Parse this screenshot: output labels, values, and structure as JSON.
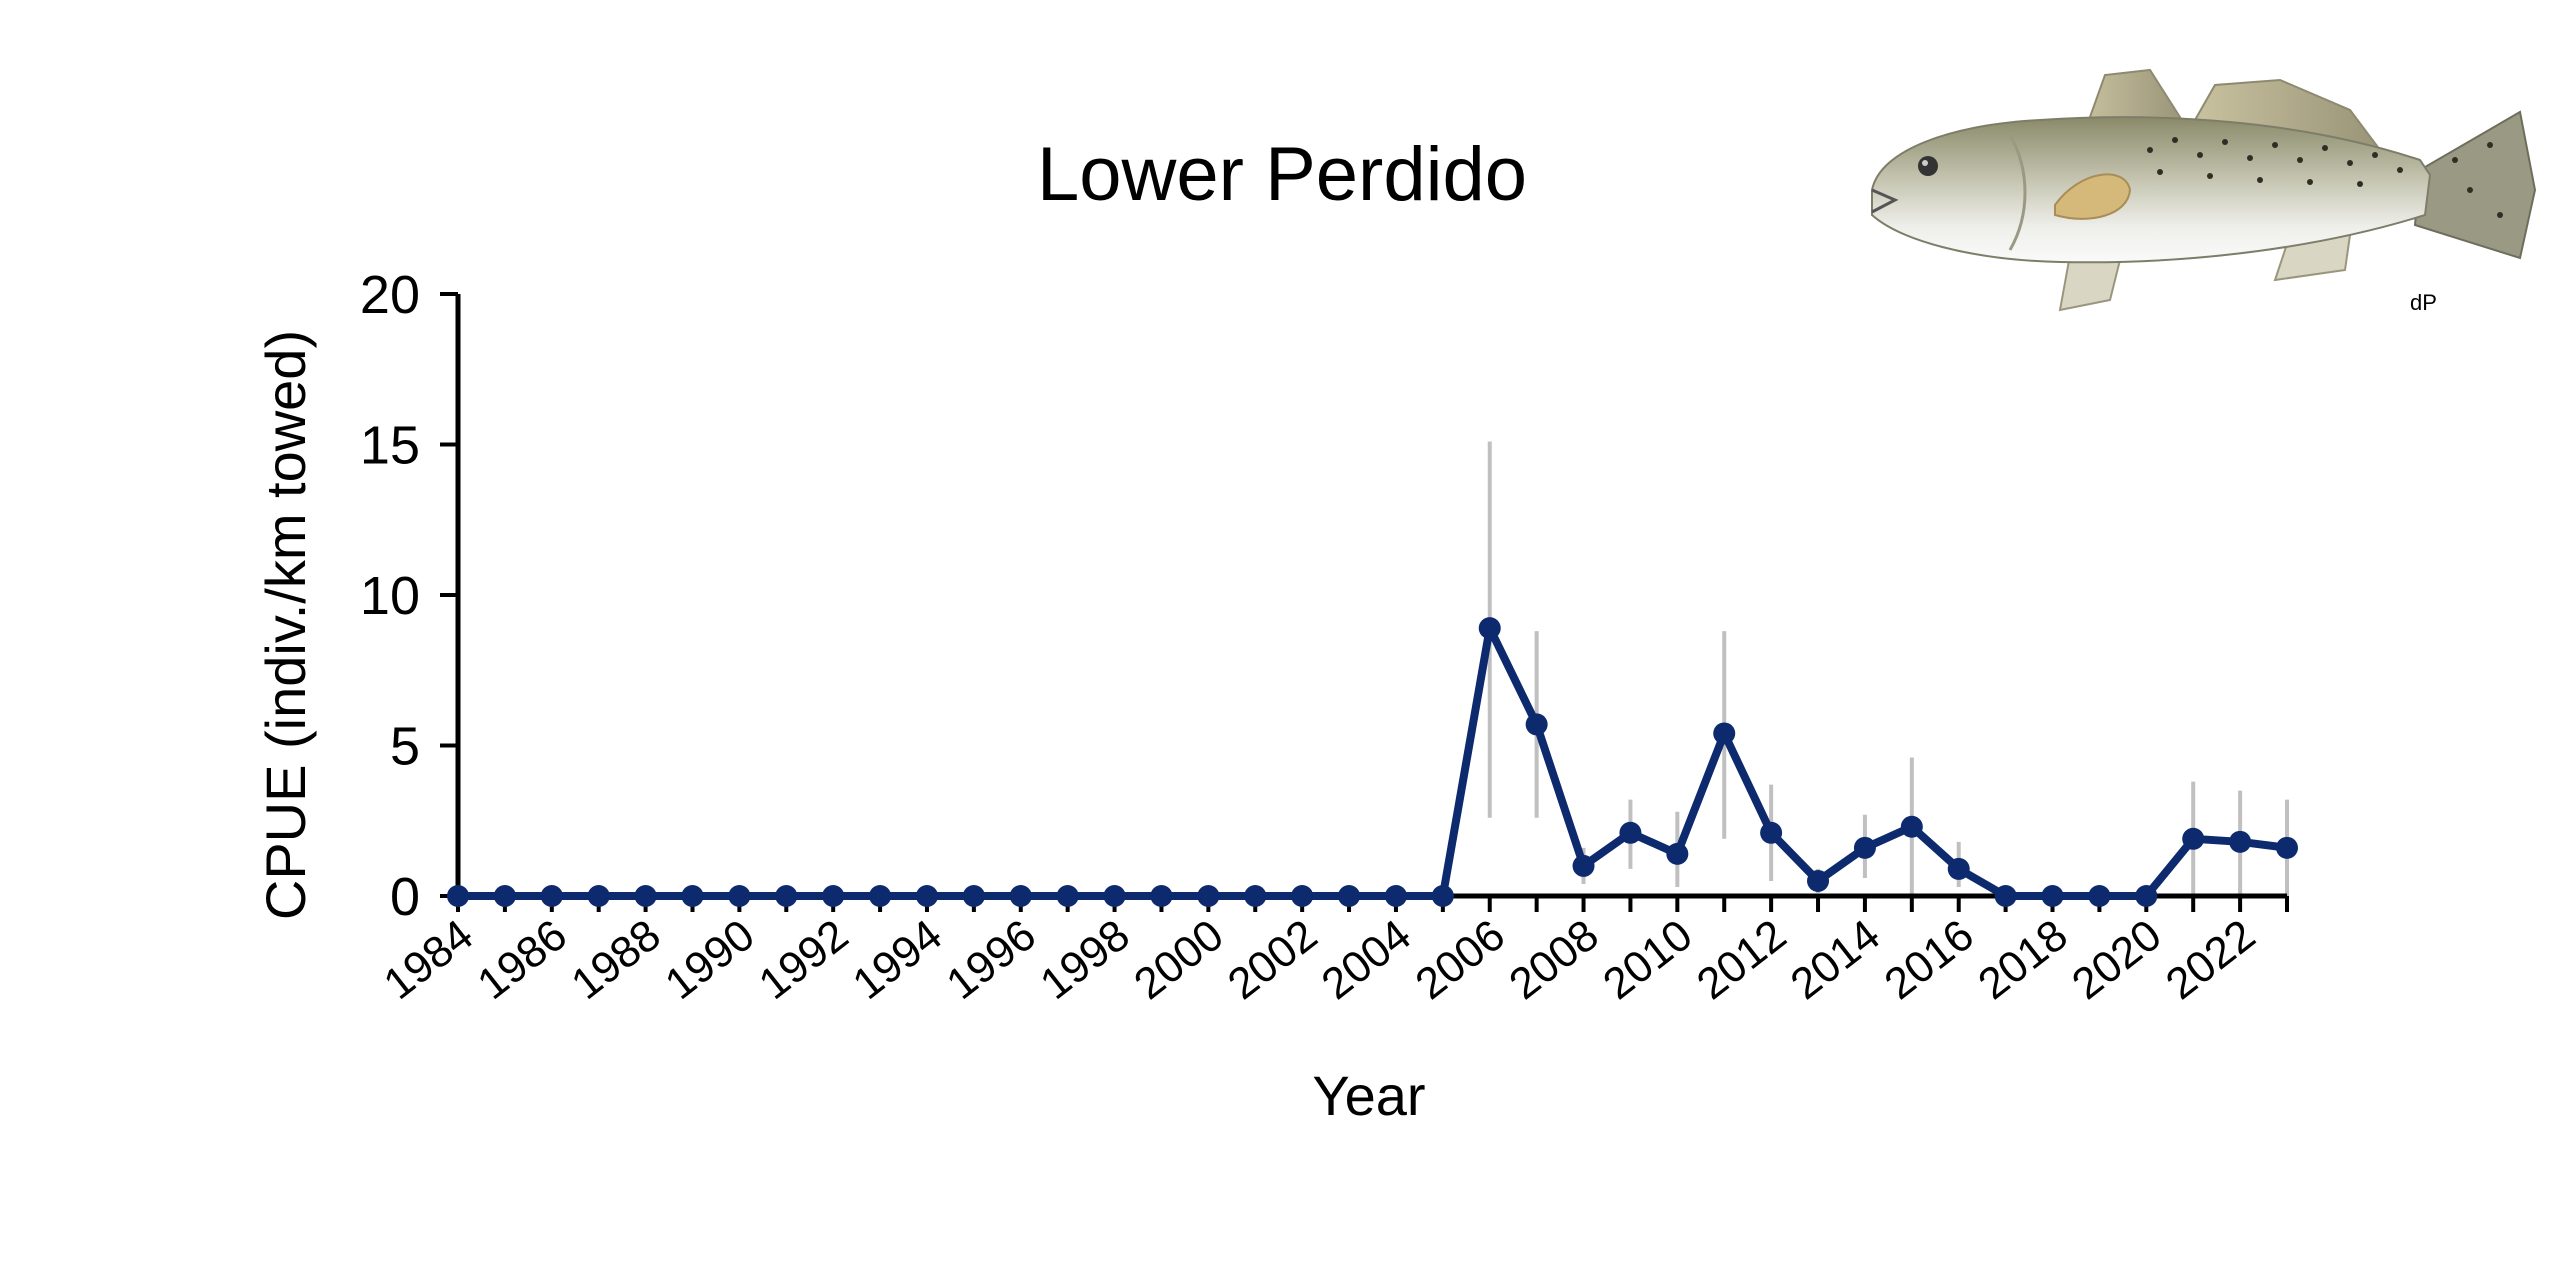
{
  "chart_data": {
    "type": "line",
    "title": "Lower Perdido",
    "xlabel": "Year",
    "ylabel": "CPUE (indiv./km towed)",
    "ylim": [
      0,
      20
    ],
    "yticks": [
      0,
      5,
      10,
      15,
      20
    ],
    "xlim": [
      1984,
      2023
    ],
    "x_tick_labels": [
      "1984",
      "1986",
      "1988",
      "1990",
      "1992",
      "1994",
      "1996",
      "1998",
      "2000",
      "2002",
      "2004",
      "2006",
      "2008",
      "2010",
      "2012",
      "2014",
      "2016",
      "2018",
      "2020",
      "2022"
    ],
    "grid": false,
    "series": [
      {
        "color": "#0d2a6e",
        "x": [
          1984,
          1985,
          1986,
          1987,
          1988,
          1989,
          1990,
          1991,
          1992,
          1993,
          1994,
          1995,
          1996,
          1997,
          1998,
          1999,
          2000,
          2001,
          2002,
          2003,
          2004,
          2005,
          2006,
          2007,
          2008,
          2009,
          2010,
          2011,
          2012,
          2013,
          2014,
          2015,
          2016,
          2017,
          2018,
          2019,
          2020,
          2021,
          2022,
          2023
        ],
        "values": [
          0,
          0,
          0,
          0,
          0,
          0,
          0,
          0,
          0,
          0,
          0,
          0,
          0,
          0,
          0,
          0,
          0,
          0,
          0,
          0,
          0,
          0,
          8.9,
          5.7,
          1.0,
          2.1,
          1.4,
          5.4,
          2.1,
          0.5,
          1.6,
          2.3,
          0.9,
          0,
          0,
          0,
          0,
          1.9,
          1.8,
          1.6
        ],
        "error_low": [
          0,
          0,
          0,
          0,
          0,
          0,
          0,
          0,
          0,
          0,
          0,
          0,
          0,
          0,
          0,
          0,
          0,
          0,
          0,
          0,
          0,
          0,
          2.6,
          2.6,
          0.4,
          0.9,
          0.3,
          1.9,
          0.5,
          0.1,
          0.6,
          0,
          0.3,
          0,
          0,
          0,
          0,
          0,
          0,
          0
        ],
        "error_high": [
          0,
          0,
          0,
          0,
          0,
          0,
          0,
          0,
          0,
          0,
          0,
          0,
          0,
          0,
          0,
          0,
          0,
          0,
          0,
          0,
          0,
          0,
          15.1,
          8.8,
          1.6,
          3.2,
          2.8,
          8.8,
          3.7,
          0.9,
          2.7,
          4.6,
          1.8,
          0,
          0,
          0,
          0,
          3.8,
          3.5,
          3.2
        ]
      }
    ],
    "errorbar_color": "#c0c0c0",
    "illustration": {
      "icon": "spotted-seatrout-illustration",
      "signature": "dP"
    }
  }
}
